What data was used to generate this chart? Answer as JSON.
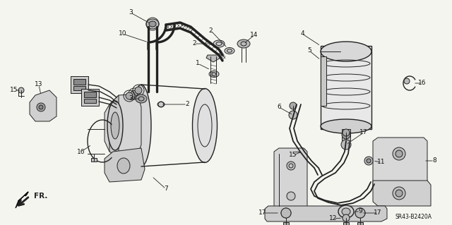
{
  "bg_color": "#f5f5f0",
  "line_color": "#222222",
  "label_color": "#111111",
  "diagram_ref": "SR43-B2420A",
  "fig_width": 6.4,
  "fig_height": 3.19,
  "dpi": 100
}
